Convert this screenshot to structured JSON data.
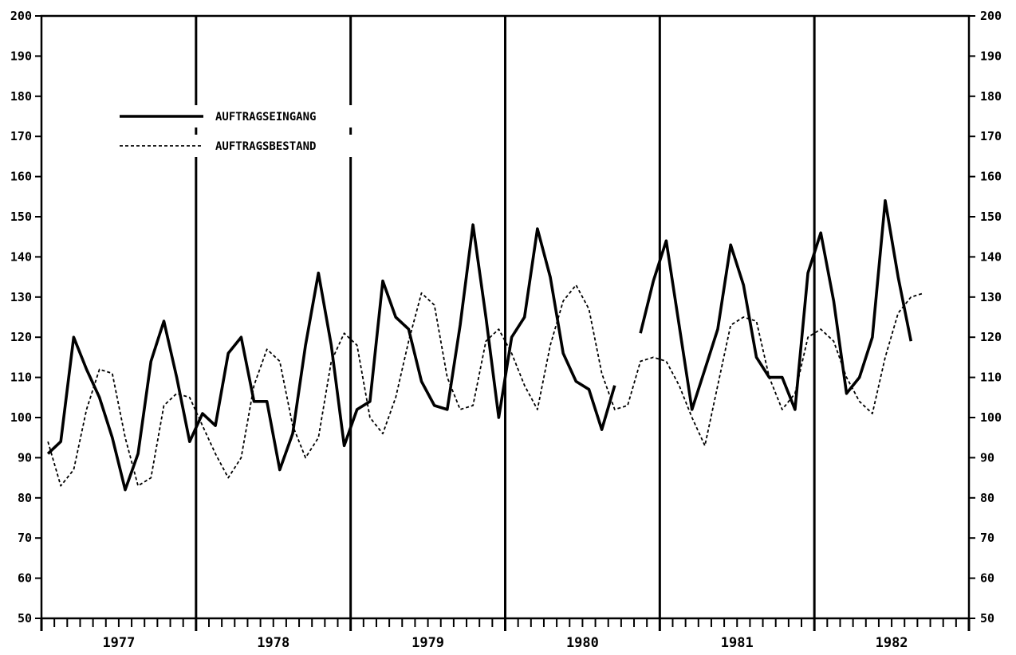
{
  "chart_data": {
    "type": "line",
    "title": "",
    "xlabel": "",
    "ylabel": "",
    "ylim": [
      50,
      200
    ],
    "yticks": [
      50,
      60,
      70,
      80,
      90,
      100,
      110,
      120,
      130,
      140,
      150,
      160,
      170,
      180,
      190,
      200
    ],
    "year_labels": [
      "1977",
      "1978",
      "1979",
      "1980",
      "1981",
      "1982"
    ],
    "months_per_year": 12,
    "grid": "vertical lines at year boundaries",
    "legend_position": "top-left",
    "series": [
      {
        "name": "AUFTRAGSEINGANG",
        "style": "solid",
        "color": "#000000",
        "values": [
          91,
          94,
          120,
          112,
          105,
          95,
          82,
          91,
          114,
          124,
          110,
          94,
          101,
          98,
          116,
          120,
          104,
          104,
          87,
          96,
          118,
          136,
          118,
          93,
          102,
          104,
          134,
          125,
          122,
          109,
          103,
          102,
          123,
          148,
          125,
          100,
          120,
          125,
          147,
          135,
          116,
          109,
          107,
          97,
          108,
          null,
          121,
          134,
          144,
          123,
          102,
          112,
          122,
          143,
          133,
          115,
          110,
          110,
          102,
          136,
          146,
          129,
          106,
          110,
          120,
          154,
          135,
          119
        ]
      },
      {
        "name": "AUFTRAGSBESTAND",
        "style": "dashed",
        "color": "#000000",
        "values": [
          94,
          83,
          87,
          102,
          112,
          111,
          95,
          83,
          85,
          103,
          106,
          105,
          98,
          91,
          85,
          90,
          108,
          117,
          114,
          98,
          90,
          95,
          114,
          121,
          118,
          100,
          96,
          105,
          119,
          131,
          128,
          110,
          102,
          103,
          119,
          122,
          116,
          108,
          102,
          118,
          129,
          133,
          127,
          111,
          102,
          103,
          114,
          115,
          114,
          108,
          100,
          93,
          108,
          123,
          125,
          124,
          110,
          102,
          106,
          120,
          122,
          119,
          110,
          104,
          101,
          115,
          126,
          130,
          131
        ]
      }
    ]
  }
}
